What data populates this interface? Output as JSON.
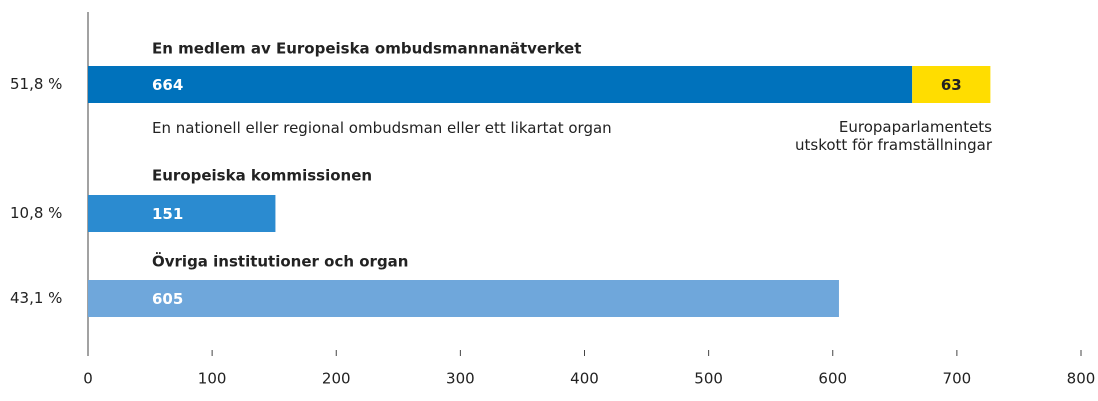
{
  "chart_data": {
    "type": "bar",
    "orientation": "horizontal",
    "stacked": true,
    "categories": [
      "En medlem av Europeiska ombudsmannanätverket",
      "Europeiska kommissionen",
      "Övriga institutioner och organ"
    ],
    "share_labels": [
      "51,8 %",
      "10,8 %",
      "43,1 %"
    ],
    "series": [
      {
        "name": "En nationell eller regional ombudsman eller ett likartat organ",
        "colors": [
          "#0072bc",
          "#2b8bd0",
          "#6fa7db"
        ],
        "values": [
          664,
          151,
          605
        ]
      },
      {
        "name": "Europaparlamentets utskott för framställningar",
        "color": "#ffdd00",
        "values": [
          63,
          null,
          null
        ]
      }
    ],
    "xlim": [
      0,
      800
    ],
    "xticks": [
      0,
      100,
      200,
      300,
      400,
      500,
      600,
      700,
      800
    ]
  }
}
